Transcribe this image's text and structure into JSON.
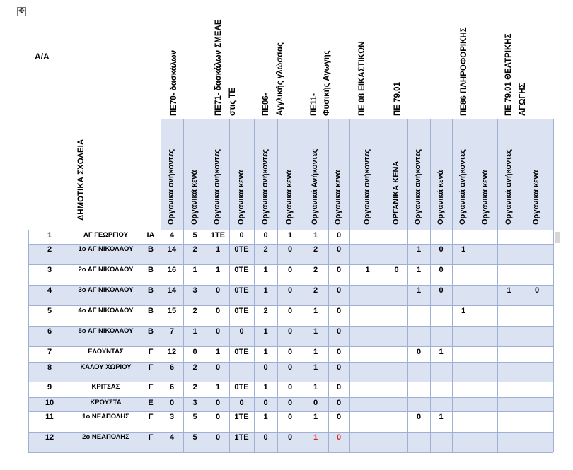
{
  "move_handle_icon": "move-arrows-icon",
  "aa_label": "Α/Α",
  "schools_header": "ΔΗΜΟΤΙΚΑ ΣΧΟΛΕΙΑ",
  "groups": [
    {
      "label": "ΠΕ70- δασκάλων"
    },
    {
      "label": "ΠΕ71- δασκάλων ΣΜΕΑΕ",
      "label2": "στις ΤΕ"
    },
    {
      "label": "ΠΕ06-",
      "label2": "Αγγλικής γλώσσας"
    },
    {
      "label": "ΠΕ11-",
      "label2": "Φυσικής Αγωγής"
    },
    {
      "label": "ΠΕ 08 ΕΙΚΑΣΤΙΚΩΝ"
    },
    {
      "label": "ΠΕ 79.01"
    },
    {
      "label": "ΠΕ86 ΠΛΗΡΟΦΟΡΙΚΗΣ"
    },
    {
      "label": "ΠΕ 79.01 ΘΕΑΤΡΙΚΗΣ",
      "label2": "ΑΓΩΓΗΣ"
    }
  ],
  "subheaders": [
    "Οργανικά ανήκοντες",
    "Οργανικά κενά",
    "Οργανικά ανήκοντες",
    "Οργανικά κενά",
    "Οργανικά ανήκοντες",
    "Οργανικά  κενά",
    "Οργανικά   Ανήκοντες",
    "Οργανικά  κενά",
    "Οργανικά ανήκοντες",
    "ΟΡΓΑΝΙΚΑ ΚΕΝΑ",
    "Οργανικά ανήκοντες",
    "Οργανικά κενά",
    "Οργανικά ανήκοντες",
    "Οργανικά κενά",
    "Οργανικά ανήκοντες",
    "Οργανικά κενά"
  ],
  "rows": [
    {
      "n": "1",
      "school": "ΑΓ ΓΕΩΡΓΙΟΥ",
      "type": "ΙΑ",
      "v": [
        "4",
        "5",
        "1ΤΕ",
        "0",
        "0",
        "1",
        "1",
        "0",
        "",
        "",
        "",
        "",
        "",
        "",
        "",
        ""
      ]
    },
    {
      "n": "2",
      "school": "1ο ΑΓ ΝΙΚΟΛΑΟΥ",
      "type": "Β",
      "v": [
        "14",
        "2",
        "1",
        "0ΤΕ",
        "2",
        "0",
        "2",
        "0",
        "",
        "",
        "1",
        "0",
        "1",
        "",
        "",
        ""
      ]
    },
    {
      "n": "3",
      "school": "2ο ΑΓ ΝΙΚΟΛΑΟΥ",
      "type": "Β",
      "v": [
        "16",
        "1",
        "1",
        "0ΤΕ",
        "1",
        "0",
        "2",
        "0",
        "1",
        "0",
        "1",
        "0",
        "",
        "",
        "",
        ""
      ]
    },
    {
      "n": "4",
      "school": "3ο ΑΓ ΝΙΚΟΛΑΟΥ",
      "type": "Β",
      "v": [
        "14",
        "3",
        "0",
        "0ΤΕ",
        "1",
        "0",
        "2",
        "0",
        "",
        "",
        "1",
        "0",
        "",
        "",
        "1",
        "0"
      ]
    },
    {
      "n": "5",
      "school": "4ο ΑΓ ΝΙΚΟΛΑΟΥ",
      "type": "Β",
      "v": [
        "15",
        "2",
        "0",
        "0ΤΕ",
        "2",
        "0",
        "1",
        "0",
        "",
        "",
        "",
        "",
        "1",
        "",
        "",
        ""
      ]
    },
    {
      "n": "6",
      "school": "5ο ΑΓ ΝΙΚΟΛΑΟΥ",
      "type": "Β",
      "v": [
        "7",
        "1",
        "0",
        "0",
        "1",
        "0",
        "1",
        "0",
        "",
        "",
        "",
        "",
        "",
        "",
        "",
        ""
      ]
    },
    {
      "n": "7",
      "school": "ΕΛΟΥΝΤΑΣ",
      "type": "Γ",
      "v": [
        "12",
        "0",
        "1",
        "0ΤΕ",
        "1",
        "0",
        "1",
        "0",
        "",
        "",
        "0",
        "1",
        "",
        "",
        "",
        ""
      ]
    },
    {
      "n": "8",
      "school": "ΚΑΛΟΥ ΧΩΡΙΟΥ",
      "type": "Γ",
      "v": [
        "6",
        "2",
        "0",
        "",
        "0",
        "0",
        "1",
        "0",
        "",
        "",
        "",
        "",
        "",
        "",
        "",
        ""
      ]
    },
    {
      "n": "9",
      "school": "ΚΡΙΤΣΑΣ",
      "type": "Γ",
      "v": [
        "6",
        "2",
        "1",
        "0ΤΕ",
        "1",
        "0",
        "1",
        "0",
        "",
        "",
        "",
        "",
        "",
        "",
        "",
        ""
      ]
    },
    {
      "n": "10",
      "school": "ΚΡΟΥΣΤΑ",
      "type": "Ε",
      "v": [
        "0",
        "3",
        "0",
        "0",
        "0",
        "0",
        "0",
        "0",
        "",
        "",
        "",
        "",
        "",
        "",
        "",
        ""
      ]
    },
    {
      "n": "11",
      "school": "1ο ΝΕΑΠΟΛΗΣ",
      "type": "Γ",
      "v": [
        "3",
        "5",
        "0",
        "1ΤΕ",
        "1",
        "0",
        "1",
        "0",
        "",
        "",
        "0",
        "1",
        "",
        "",
        "",
        ""
      ]
    },
    {
      "n": "12",
      "school": "2ο ΝΕΑΠΟΛΗΣ",
      "type": "Γ",
      "v": [
        "4",
        "5",
        "0",
        "1ΤΕ",
        "0",
        "0",
        "1",
        "0",
        "",
        "",
        "",
        "",
        "",
        "",
        "",
        ""
      ],
      "red": [
        6,
        7
      ]
    }
  ],
  "colors": {
    "band": "#dbe3f3",
    "line": "#9fb0d2",
    "highlight": "#e02020"
  }
}
